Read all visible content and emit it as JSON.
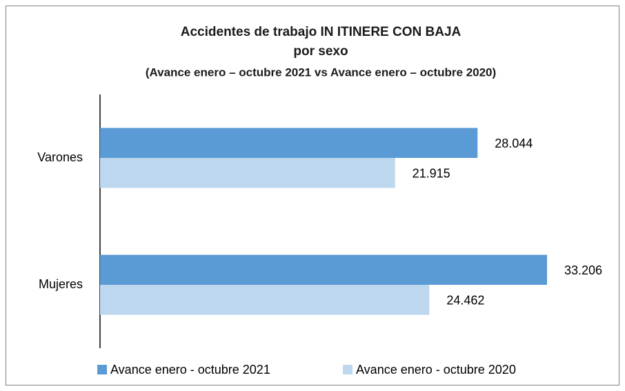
{
  "chart_data": {
    "type": "hbar",
    "title": [
      "Accidentes de trabajo IN ITINERE CON BAJA",
      "por sexo"
    ],
    "subtitle": "(Avance enero – octubre 2021 vs Avance enero – octubre 2020)",
    "categories": [
      "Varones",
      "Mujeres"
    ],
    "series": [
      {
        "name": "Avance enero - octubre 2021",
        "color": "#5b9bd5",
        "values": [
          28044,
          33206
        ],
        "value_labels": [
          "28.044",
          "33.206"
        ]
      },
      {
        "name": "Avance enero - octubre 2020",
        "color": "#bdd7ee",
        "values": [
          21915,
          24462
        ],
        "value_labels": [
          "21.915",
          "24.462"
        ]
      }
    ],
    "xlim": [
      0,
      35000
    ],
    "legend": "bottom"
  }
}
